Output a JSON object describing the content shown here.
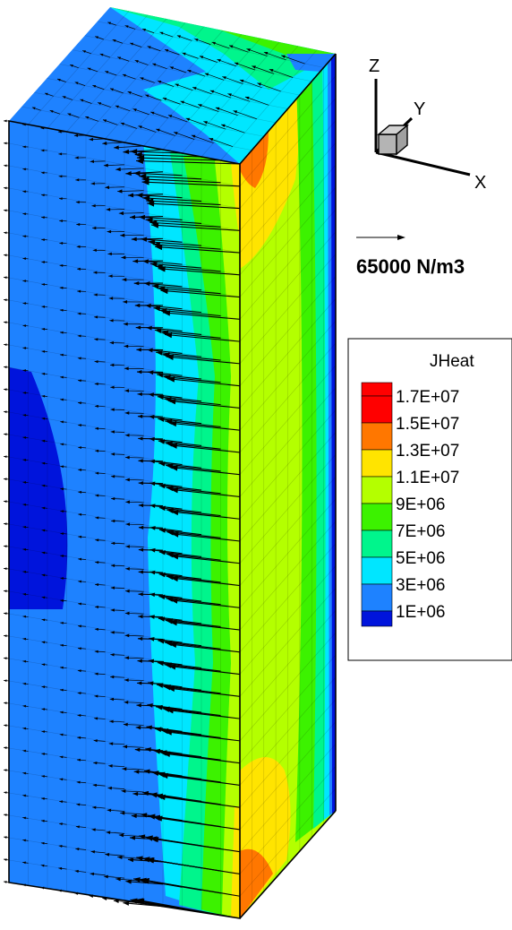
{
  "chart_data": {
    "type": "heatmap",
    "description_variable": "JHeat",
    "legend": {
      "title": "JHeat",
      "placement": "right",
      "levels": [
        "1.7E+07",
        "1.5E+07",
        "1.3E+07",
        "1.1E+07",
        "9E+06",
        "7E+06",
        "5E+06",
        "3E+06",
        "1E+06"
      ],
      "colors": [
        "#ff0000",
        "#ff7700",
        "#ffe400",
        "#b4ff00",
        "#3cf200",
        "#00f58c",
        "#00e6ff",
        "#1e82ff",
        "#0014dc"
      ],
      "top_color": "#ff0000"
    },
    "vector_scale": {
      "label": "65000 N/m3",
      "value": 65000,
      "unit": "N/m3"
    },
    "axes": {
      "x": "X",
      "y": "Y",
      "z": "Z"
    }
  },
  "colors": {
    "background": "#ffffff",
    "outline": "#000000",
    "cube_face": "#b4b4b4"
  }
}
